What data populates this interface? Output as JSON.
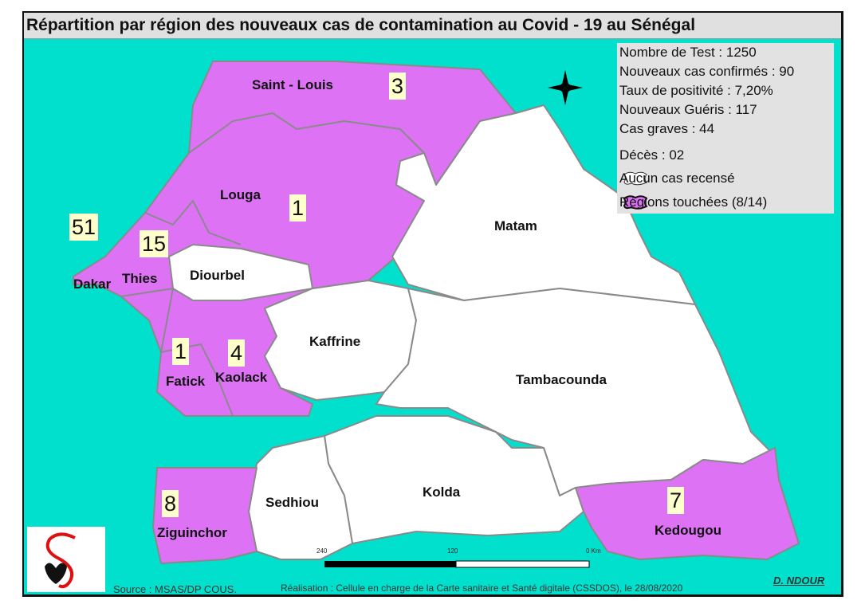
{
  "title": "Répartition par région des nouveaux cas de contamination au Covid - 19 au Sénégal",
  "colors": {
    "sea": "#00e0cc",
    "affected": "#dd72f5",
    "unaffected": "#ffffff",
    "border": "#8a8a8a",
    "badge": "#ffffcc"
  },
  "stats": {
    "tests": "Nombre de Test :  1250",
    "confirmed": "Nouveaux cas confirmés : 90",
    "positivity": "Taux de positivité :   7,20%",
    "recovered": "Nouveaux Guéris : 117",
    "severe": "Cas graves :     44",
    "deaths": "Décès : 02"
  },
  "legend": {
    "none": "Aucun cas recensé",
    "affected": "Régions touchées (8/14)"
  },
  "regions": {
    "saint_louis": {
      "name": "Saint - Louis",
      "cases": "3"
    },
    "louga": {
      "name": "Louga",
      "cases": "1"
    },
    "dakar": {
      "name": "Dakar",
      "cases": "51"
    },
    "thies": {
      "name": "Thies",
      "cases": "15"
    },
    "diourbel": {
      "name": "Diourbel"
    },
    "matam": {
      "name": "Matam"
    },
    "fatick": {
      "name": "Fatick",
      "cases": "1"
    },
    "kaolack": {
      "name": "Kaolack",
      "cases": "4"
    },
    "kaffrine": {
      "name": "Kaffrine"
    },
    "tambacounda": {
      "name": "Tambacounda"
    },
    "ziguinchor": {
      "name": "Ziguinchor",
      "cases": "8"
    },
    "sedhiou": {
      "name": "Sedhiou"
    },
    "kolda": {
      "name": "Kolda"
    },
    "kedougou": {
      "name": "Kedougou",
      "cases": "7"
    }
  },
  "scale": {
    "labels": [
      "240",
      "120",
      "0 Km"
    ]
  },
  "source": "Source : MSAS/DP  COUS.",
  "credit": "Réalisation : Cellule en charge de la Carte sanitaire et Santé digitale (CSSDOS), le 28/08/2020",
  "author": "D. NDOUR",
  "icons": {
    "compass": "compass-rose-icon",
    "logo": "ministry-logo"
  }
}
